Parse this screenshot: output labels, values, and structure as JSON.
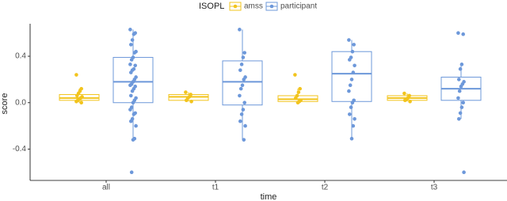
{
  "chart_data": {
    "type": "box",
    "x_label": "time",
    "y_label": "score",
    "legend_title": "ISOPL",
    "categories": [
      "all",
      "t1",
      "t2",
      "t3"
    ],
    "ylim": [
      -0.67,
      0.68
    ],
    "yticks": [
      -0.4,
      {
        "value": 0,
        "label": "0.0"
      },
      0.4
    ],
    "series": [
      {
        "name": "amss",
        "color": "#f2c41d",
        "boxes": [
          {
            "whislo": 0.0,
            "q1": 0.02,
            "med": 0.04,
            "q3": 0.07,
            "whishi": 0.12
          },
          {
            "whislo": 0.01,
            "q1": 0.02,
            "med": 0.05,
            "q3": 0.07,
            "whishi": 0.09
          },
          {
            "whislo": 0.0,
            "q1": 0.01,
            "med": 0.03,
            "q3": 0.06,
            "whishi": 0.12
          },
          {
            "whislo": 0.01,
            "q1": 0.02,
            "med": 0.04,
            "q3": 0.06,
            "whishi": 0.08
          }
        ],
        "points": [
          [
            0.24,
            0.12,
            0.1,
            0.08,
            0.06,
            0.05,
            0.04,
            0.03,
            0.02,
            0.01,
            0.0
          ],
          [
            0.09,
            0.07,
            0.05,
            0.04,
            0.02,
            0.01
          ],
          [
            0.24,
            0.12,
            0.09,
            0.06,
            0.04,
            0.02,
            0.01,
            0.0
          ],
          [
            0.08,
            0.06,
            0.04,
            0.03,
            0.02,
            0.01
          ]
        ]
      },
      {
        "name": "participant",
        "color": "#6d98da",
        "boxes": [
          {
            "whislo": -0.32,
            "q1": 0.0,
            "med": 0.18,
            "q3": 0.39,
            "whishi": 0.63
          },
          {
            "whislo": -0.32,
            "q1": -0.02,
            "med": 0.18,
            "q3": 0.36,
            "whishi": 0.63
          },
          {
            "whislo": -0.31,
            "q1": 0.01,
            "med": 0.25,
            "q3": 0.44,
            "whishi": 0.54
          },
          {
            "whislo": -0.14,
            "q1": 0.02,
            "med": 0.12,
            "q3": 0.22,
            "whishi": 0.33
          }
        ],
        "points": [
          [
            0.63,
            0.6,
            0.59,
            0.54,
            0.5,
            0.44,
            0.43,
            0.39,
            0.37,
            0.33,
            0.32,
            0.29,
            0.28,
            0.26,
            0.22,
            0.2,
            0.18,
            0.16,
            0.15,
            0.14,
            0.12,
            0.1,
            0.06,
            0.04,
            0.02,
            0.0,
            -0.04,
            -0.06,
            -0.09,
            -0.1,
            -0.14,
            -0.16,
            -0.2,
            -0.31,
            -0.32,
            -0.6
          ],
          [
            0.63,
            0.43,
            0.39,
            0.33,
            0.28,
            0.22,
            0.2,
            0.15,
            0.12,
            0.06,
            0.0,
            -0.06,
            -0.1,
            -0.16,
            -0.2,
            -0.32
          ],
          [
            0.54,
            0.5,
            0.44,
            0.39,
            0.37,
            0.32,
            0.26,
            0.2,
            0.15,
            0.1,
            0.02,
            0.0,
            -0.04,
            -0.1,
            -0.14,
            -0.2,
            -0.31
          ],
          [
            0.6,
            0.59,
            0.33,
            0.29,
            0.2,
            0.18,
            0.16,
            0.14,
            0.1,
            0.04,
            0.0,
            -0.04,
            -0.09,
            -0.14,
            -0.6
          ]
        ]
      }
    ]
  }
}
